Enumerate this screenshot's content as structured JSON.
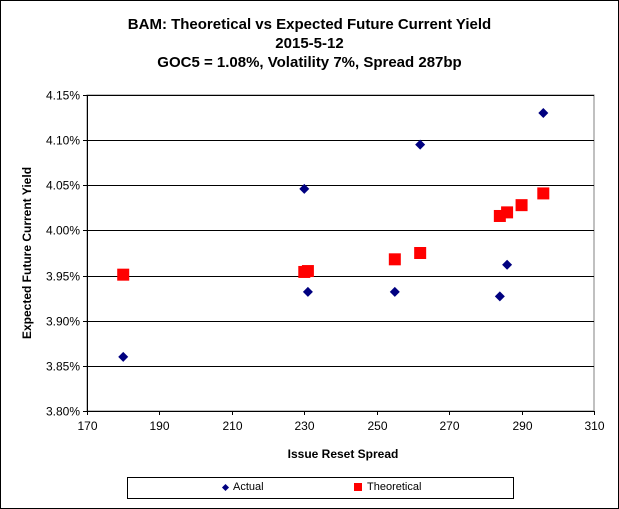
{
  "chart_data": {
    "type": "scatter",
    "title": "BAM: Theoretical vs Expected Future Current Yield",
    "subtitle_date": "2015-5-12",
    "subtitle_params": "GOC5 = 1.08%, Volatility 7%, Spread 287bp",
    "xlabel": "Issue Reset Spread",
    "ylabel": "Expected Future Current Yield",
    "xlim": [
      170,
      310
    ],
    "ylim": [
      3.8,
      4.15
    ],
    "x_ticks": [
      170,
      190,
      210,
      230,
      250,
      270,
      290,
      310
    ],
    "x_tick_labels": [
      "170",
      "190",
      "210",
      "230",
      "250",
      "270",
      "290",
      "310"
    ],
    "y_ticks": [
      3.8,
      3.85,
      3.9,
      3.95,
      4.0,
      4.05,
      4.1,
      4.15
    ],
    "y_tick_labels": [
      "3.80%",
      "3.85%",
      "3.90%",
      "3.95%",
      "4.00%",
      "4.05%",
      "4.10%",
      "4.15%"
    ],
    "grid": "horizontal",
    "legend_position": "bottom",
    "series": [
      {
        "name": "Actual",
        "marker": "diamond",
        "color": "#000080",
        "points": [
          {
            "x": 180,
            "y": 3.86
          },
          {
            "x": 230,
            "y": 4.046
          },
          {
            "x": 231,
            "y": 3.932
          },
          {
            "x": 255,
            "y": 3.932
          },
          {
            "x": 262,
            "y": 4.095
          },
          {
            "x": 284,
            "y": 3.927
          },
          {
            "x": 286,
            "y": 3.962
          },
          {
            "x": 296,
            "y": 4.13
          }
        ]
      },
      {
        "name": "Theoretical",
        "marker": "square",
        "color": "#ff0000",
        "points": [
          {
            "x": 180,
            "y": 3.951
          },
          {
            "x": 230,
            "y": 3.954
          },
          {
            "x": 231,
            "y": 3.955
          },
          {
            "x": 255,
            "y": 3.968
          },
          {
            "x": 262,
            "y": 3.975
          },
          {
            "x": 284,
            "y": 4.016
          },
          {
            "x": 286,
            "y": 4.02
          },
          {
            "x": 290,
            "y": 4.028
          },
          {
            "x": 296,
            "y": 4.041
          }
        ]
      }
    ]
  }
}
